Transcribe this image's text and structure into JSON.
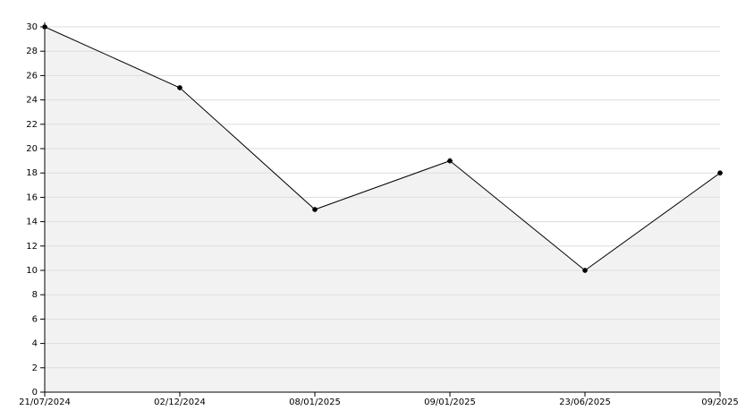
{
  "chart_data": {
    "type": "area",
    "categories": [
      "21/07/2024",
      "02/12/2024",
      "08/01/2025",
      "09/01/2025",
      "23/06/2025",
      "09/2025"
    ],
    "values": [
      30,
      25,
      15,
      19,
      10,
      18
    ],
    "color": "#000000",
    "fill": "#f2f2f2",
    "ylim": [
      0,
      30
    ],
    "yticks": [
      0,
      2,
      4,
      6,
      8,
      10,
      12,
      14,
      16,
      18,
      20,
      22,
      24,
      26,
      28,
      30
    ],
    "grid": true
  }
}
